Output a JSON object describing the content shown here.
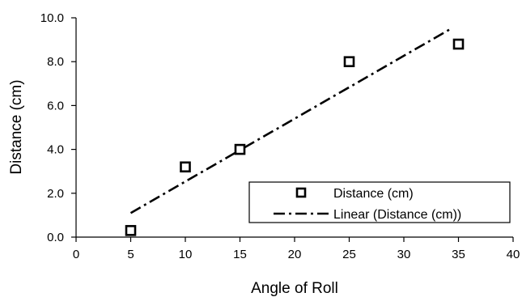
{
  "chart_data": {
    "type": "scatter",
    "xlabel": "Angle of Roll",
    "ylabel": "Distance (cm)",
    "xlim": [
      0,
      40
    ],
    "ylim": [
      0.0,
      10.0
    ],
    "x_ticks": [
      "0",
      "5",
      "10",
      "15",
      "20",
      "25",
      "30",
      "35",
      "40"
    ],
    "y_ticks": [
      "0.0",
      "2.0",
      "4.0",
      "6.0",
      "8.0",
      "10.0"
    ],
    "grid": false,
    "legend_position": "bottom-right",
    "series": [
      {
        "name": "Distance  (cm)",
        "marker": "open-square",
        "points": [
          {
            "x": 5,
            "y": 0.3
          },
          {
            "x": 10,
            "y": 3.2
          },
          {
            "x": 15,
            "y": 4.0
          },
          {
            "x": 25,
            "y": 8.0
          },
          {
            "x": 35,
            "y": 8.8
          }
        ]
      }
    ],
    "trendline": {
      "name": "Linear (Distance  (cm))",
      "style": "dash-dot",
      "x_start": 5,
      "y_start": 1.1,
      "x_end": 34.3,
      "y_end": 9.5
    }
  }
}
